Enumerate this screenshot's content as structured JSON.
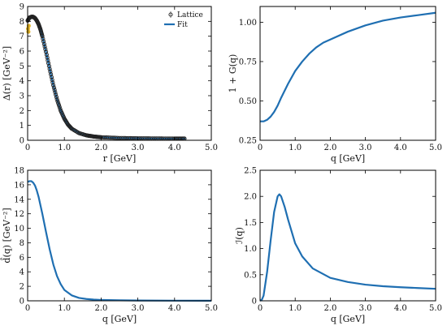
{
  "colors": {
    "fit": "#1f6fb2",
    "lattice_marker": "#222222",
    "lattice_early": "#e0b020",
    "frame": "#000000"
  },
  "chart_data": [
    {
      "id": "delta-r",
      "type": "line",
      "xlabel": "r [GeV]",
      "ylabel": "Δ(r) [GeV⁻²]",
      "xlim": [
        0,
        5
      ],
      "ylim": [
        0,
        9
      ],
      "xticks": [
        "0",
        "1.0",
        "2.0",
        "3.0",
        "4.0",
        "5.0"
      ],
      "xtick_values": [
        0,
        1,
        2,
        3,
        4,
        5
      ],
      "yticks": [
        "0",
        "1",
        "2",
        "3",
        "4",
        "5",
        "6",
        "7",
        "8",
        "9"
      ],
      "ytick_values": [
        0,
        1,
        2,
        3,
        4,
        5,
        6,
        7,
        8,
        9
      ],
      "legend": {
        "position": "top-right",
        "entries": [
          "Lattice",
          "Fit"
        ]
      },
      "series": [
        {
          "name": "Fit",
          "kind": "line",
          "x": [
            0,
            0.05,
            0.1,
            0.15,
            0.2,
            0.25,
            0.3,
            0.35,
            0.4,
            0.5,
            0.6,
            0.7,
            0.8,
            0.9,
            1.0,
            1.1,
            1.2,
            1.4,
            1.6,
            1.8,
            2.0,
            2.5,
            3.0,
            3.5,
            4.0,
            4.3
          ],
          "y": [
            8.05,
            8.25,
            8.3,
            8.3,
            8.22,
            8.05,
            7.8,
            7.45,
            7.0,
            5.95,
            4.8,
            3.7,
            2.75,
            2.0,
            1.45,
            1.05,
            0.78,
            0.48,
            0.33,
            0.25,
            0.2,
            0.15,
            0.13,
            0.12,
            0.11,
            0.11
          ]
        },
        {
          "name": "Lattice",
          "kind": "points",
          "x": [
            0,
            0.05,
            0.1,
            0.15,
            0.2,
            0.25,
            0.3,
            0.35,
            0.4,
            0.5,
            0.6,
            0.7,
            0.8,
            0.9,
            1.0,
            1.1,
            1.2,
            1.4,
            1.6,
            1.8,
            2.0,
            2.5,
            3.0,
            3.5,
            4.0,
            4.3
          ],
          "y": [
            8.05,
            8.25,
            8.3,
            8.3,
            8.22,
            8.05,
            7.8,
            7.45,
            7.0,
            5.95,
            4.8,
            3.7,
            2.75,
            2.0,
            1.45,
            1.05,
            0.78,
            0.48,
            0.33,
            0.25,
            0.2,
            0.15,
            0.13,
            0.12,
            0.11,
            0.11
          ]
        },
        {
          "name": "",
          "kind": "points-early",
          "x": [
            0.01,
            0.02,
            0.03
          ],
          "y": [
            7.5,
            7.3,
            7.7
          ]
        }
      ]
    },
    {
      "id": "one-plus-g",
      "type": "line",
      "xlabel": "q [GeV]",
      "ylabel": "1 + G(q)",
      "xlim": [
        0,
        5
      ],
      "ylim": [
        0.25,
        1.1
      ],
      "xticks": [
        "0",
        "1.0",
        "2.0",
        "3.0",
        "4.0",
        "5.0"
      ],
      "xtick_values": [
        0,
        1,
        2,
        3,
        4,
        5
      ],
      "yticks": [
        "0.25",
        "0.50",
        "0.75",
        "1.00"
      ],
      "ytick_values": [
        0.25,
        0.5,
        0.75,
        1.0
      ],
      "series": [
        {
          "name": "",
          "kind": "line",
          "x": [
            0,
            0.1,
            0.2,
            0.3,
            0.4,
            0.5,
            0.6,
            0.8,
            1.0,
            1.2,
            1.4,
            1.6,
            1.8,
            2.0,
            2.5,
            3.0,
            3.5,
            4.0,
            4.5,
            5.0
          ],
          "y": [
            0.37,
            0.37,
            0.38,
            0.4,
            0.43,
            0.47,
            0.52,
            0.61,
            0.69,
            0.75,
            0.8,
            0.84,
            0.87,
            0.89,
            0.94,
            0.98,
            1.01,
            1.03,
            1.045,
            1.06
          ]
        }
      ]
    },
    {
      "id": "d-hat-q",
      "type": "line",
      "xlabel": "q [GeV]",
      "ylabel": "d̂(q) [GeV⁻²]",
      "xlim": [
        0,
        5
      ],
      "ylim": [
        0,
        18
      ],
      "xticks": [
        "0",
        "1.0",
        "2.0",
        "3.0",
        "4.0",
        "5.0"
      ],
      "xtick_values": [
        0,
        1,
        2,
        3,
        4,
        5
      ],
      "yticks": [
        "0",
        "2",
        "4",
        "6",
        "8",
        "10",
        "12",
        "14",
        "16",
        "18"
      ],
      "ytick_values": [
        0,
        2,
        4,
        6,
        8,
        10,
        12,
        14,
        16,
        18
      ],
      "series": [
        {
          "name": "",
          "kind": "line",
          "x": [
            0,
            0.05,
            0.1,
            0.15,
            0.2,
            0.25,
            0.3,
            0.4,
            0.5,
            0.6,
            0.7,
            0.8,
            0.9,
            1.0,
            1.2,
            1.4,
            1.6,
            1.8,
            2.0,
            2.5,
            3.0,
            4.0,
            5.0
          ],
          "y": [
            16.4,
            16.5,
            16.5,
            16.3,
            15.9,
            15.2,
            14.3,
            12.0,
            9.5,
            7.1,
            5.0,
            3.4,
            2.3,
            1.5,
            0.75,
            0.4,
            0.25,
            0.17,
            0.12,
            0.07,
            0.04,
            0.02,
            0.01
          ]
        }
      ]
    },
    {
      "id": "i-q",
      "type": "line",
      "xlabel": "q [GeV]",
      "ylabel": "ℐ(q)",
      "xlim": [
        0,
        5
      ],
      "ylim": [
        0,
        2.5
      ],
      "xticks": [
        "0",
        "1.0",
        "2.0",
        "3.0",
        "4.0",
        "5.0"
      ],
      "xtick_values": [
        0,
        1,
        2,
        3,
        4,
        5
      ],
      "yticks": [
        "0",
        "0.5",
        "1.0",
        "1.5",
        "2.0",
        "2.5"
      ],
      "ytick_values": [
        0,
        0.5,
        1.0,
        1.5,
        2.0,
        2.5
      ],
      "series": [
        {
          "name": "",
          "kind": "line",
          "x": [
            0,
            0.05,
            0.1,
            0.2,
            0.3,
            0.4,
            0.5,
            0.55,
            0.6,
            0.7,
            0.8,
            1.0,
            1.2,
            1.5,
            2.0,
            2.5,
            3.0,
            3.5,
            4.0,
            4.5,
            5.0
          ],
          "y": [
            0,
            0.02,
            0.1,
            0.55,
            1.15,
            1.7,
            2.0,
            2.04,
            2.0,
            1.8,
            1.55,
            1.1,
            0.85,
            0.62,
            0.44,
            0.36,
            0.31,
            0.28,
            0.26,
            0.245,
            0.23
          ]
        }
      ]
    }
  ]
}
